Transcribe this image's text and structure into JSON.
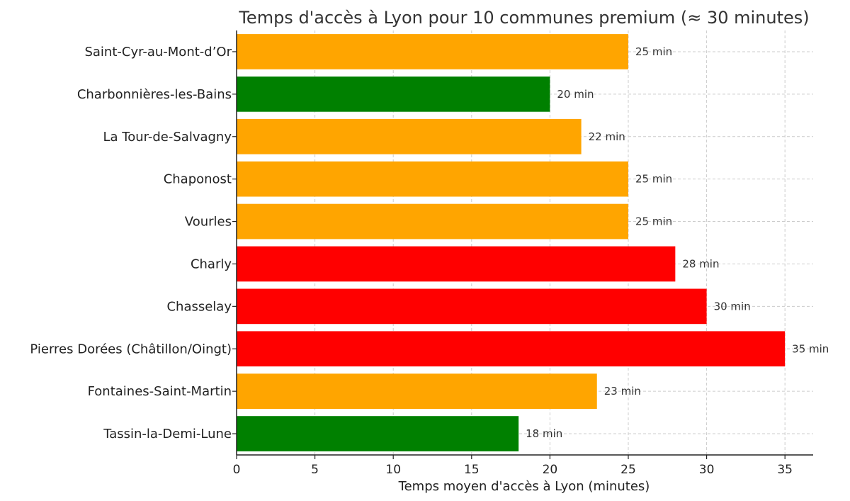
{
  "chart_data": {
    "type": "bar",
    "orientation": "horizontal",
    "title": "Temps d'accès à Lyon pour 10 communes premium (≈ 30 minutes)",
    "xlabel": "Temps moyen d'accès à Lyon (minutes)",
    "ylabel": "",
    "xlim": [
      0,
      36.8
    ],
    "xticks": [
      0,
      5,
      10,
      15,
      20,
      25,
      30,
      35
    ],
    "grid": true,
    "value_suffix": " min",
    "categories": [
      "Saint-Cyr-au-Mont-d’Or",
      "Charbonnières-les-Bains",
      "La Tour-de-Salvagny",
      "Chaponost",
      "Vourles",
      "Charly",
      "Chasselay",
      "Pierres Dorées (Châtillon/Oingt)",
      "Fontaines-Saint-Martin",
      "Tassin-la-Demi-Lune"
    ],
    "values": [
      25,
      20,
      22,
      25,
      25,
      28,
      30,
      35,
      23,
      18
    ],
    "colors": [
      "#FFA500",
      "#008000",
      "#FFA500",
      "#FFA500",
      "#FFA500",
      "#FF0000",
      "#FF0000",
      "#FF0000",
      "#FFA500",
      "#008000"
    ]
  }
}
